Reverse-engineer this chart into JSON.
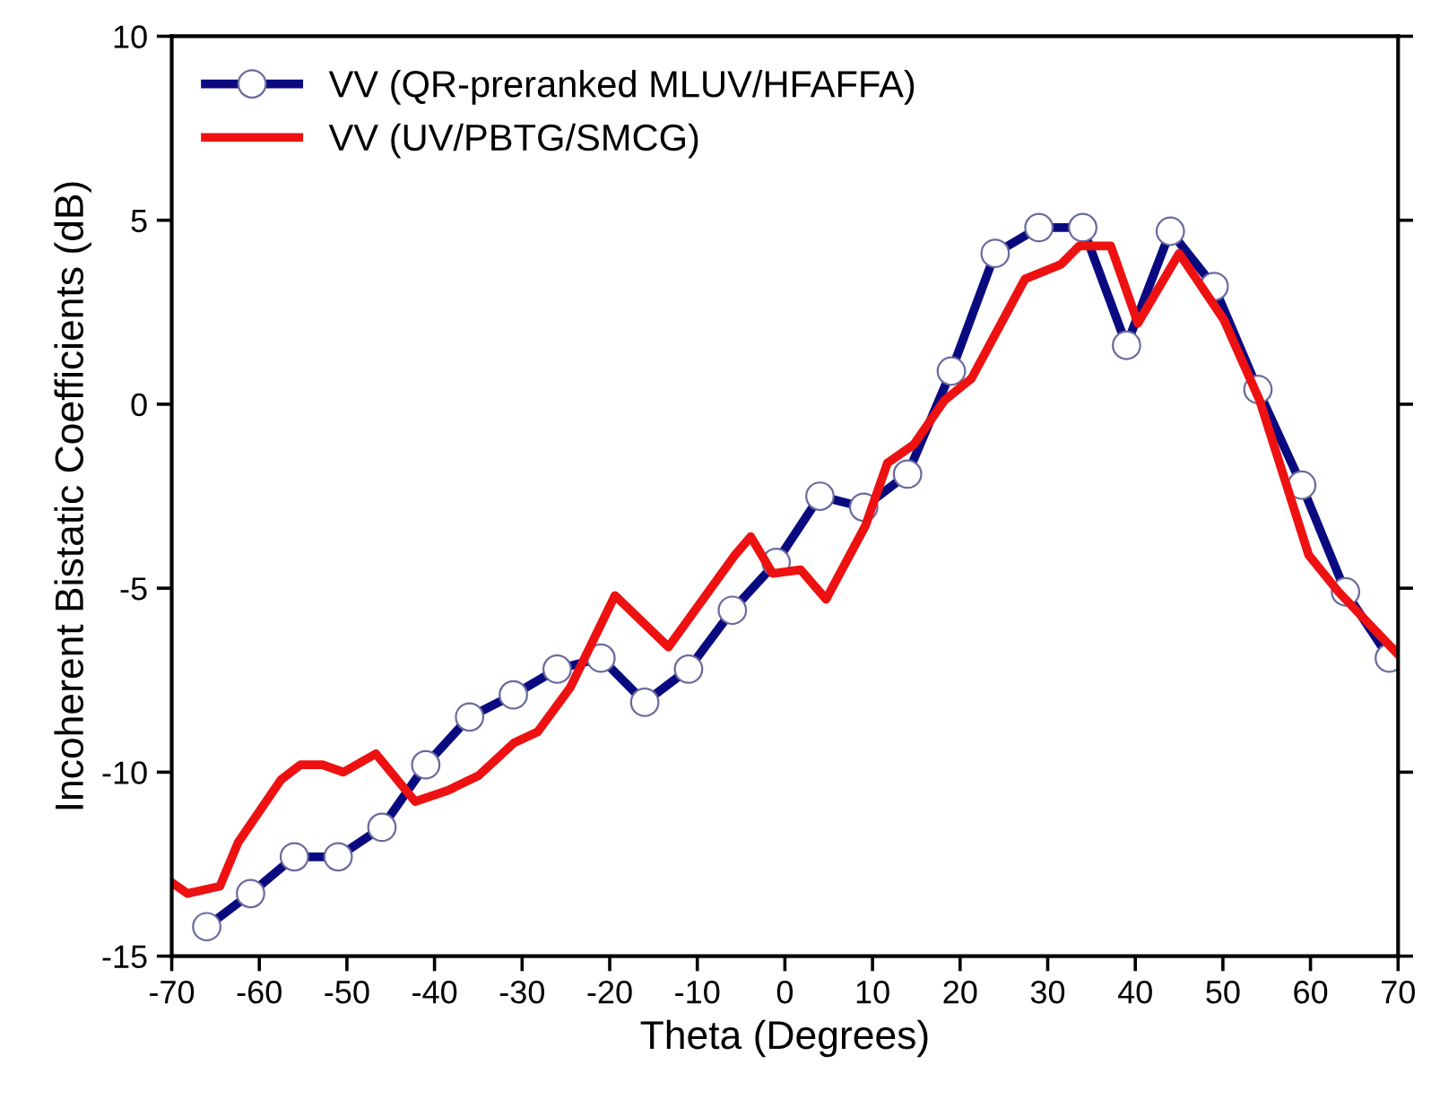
{
  "chart_data": {
    "type": "line",
    "xlabel": "Theta (Degrees)",
    "ylabel": "Incoherent Bistatic Coefficients (dB)",
    "xlim": [
      -70,
      70
    ],
    "xticks": [
      -70,
      -60,
      -50,
      -40,
      -30,
      -20,
      -10,
      0,
      10,
      20,
      30,
      40,
      50,
      60,
      70
    ],
    "ylim": [
      -15,
      10
    ],
    "yticks": [
      -15,
      -10,
      -5,
      0,
      5,
      10
    ],
    "grid": false,
    "legend": "top left",
    "series": [
      {
        "name": "VV (QR-preranked MLUV/HFAFFA)",
        "color": "#0a0a80",
        "marker": "circle",
        "x": [
          -66,
          -61,
          -56,
          -51,
          -46,
          -41,
          -36,
          -31,
          -26,
          -21,
          -16,
          -11,
          -6,
          -1,
          4,
          9,
          14,
          19,
          24,
          29,
          34,
          39,
          44,
          49,
          54,
          59,
          64,
          69
        ],
        "values": [
          -14.2,
          -13.3,
          -12.3,
          -12.3,
          -11.5,
          -9.8,
          -8.5,
          -7.9,
          -7.2,
          -6.9,
          -8.1,
          -7.2,
          -5.6,
          -4.3,
          -2.5,
          -2.8,
          -1.9,
          0.9,
          4.1,
          4.8,
          4.8,
          1.6,
          4.7,
          3.2,
          0.4,
          -2.2,
          -5.1,
          -6.9
        ]
      },
      {
        "name": "VV (UV/PBTG/SMCG)",
        "color": "#ee1111",
        "marker": "none",
        "x": [
          -70,
          -68.2,
          -64.5,
          -62.4,
          -57.5,
          -55.3,
          -52.8,
          -50.4,
          -46.7,
          -42.2,
          -38.5,
          -35,
          -30.9,
          -28.2,
          -24.5,
          -19.4,
          -13.3,
          -5.7,
          -3.9,
          -1.4,
          1.8,
          4.7,
          9.2,
          11.7,
          14.7,
          18.2,
          21.3,
          27.4,
          31.5,
          33.6,
          37.2,
          40.3,
          45,
          50.1,
          54.2,
          59.8,
          63.2,
          70
        ],
        "values": [
          -13.0,
          -13.3,
          -13.1,
          -11.9,
          -10.2,
          -9.8,
          -9.8,
          -10.0,
          -9.5,
          -10.8,
          -10.5,
          -10.1,
          -9.2,
          -8.9,
          -7.7,
          -5.2,
          -6.6,
          -4.1,
          -3.6,
          -4.6,
          -4.5,
          -5.3,
          -3.3,
          -1.6,
          -1.1,
          0.1,
          0.7,
          3.4,
          3.8,
          4.3,
          4.3,
          2.2,
          4.1,
          2.3,
          0.1,
          -4.1,
          -5.1,
          -6.8
        ]
      }
    ]
  }
}
